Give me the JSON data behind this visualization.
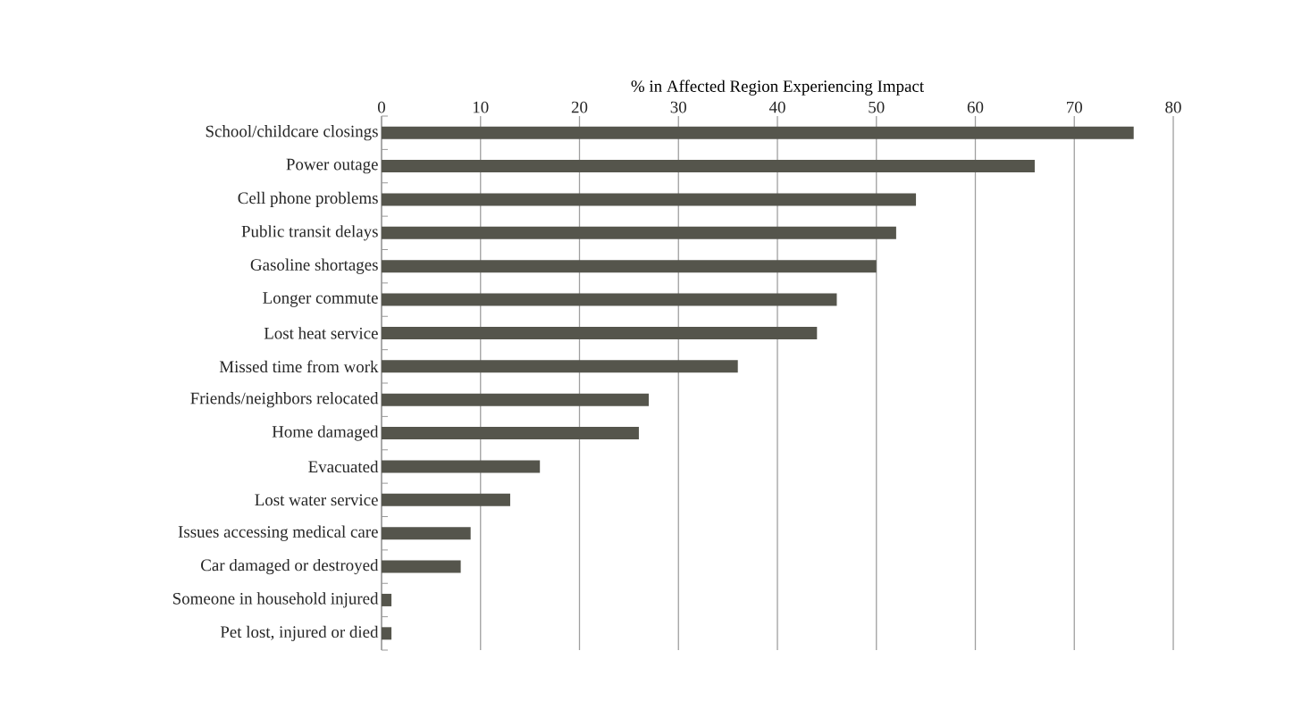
{
  "chart_data": {
    "type": "bar",
    "orientation": "horizontal",
    "xlabel": "% in Affected Region Experiencing Impact",
    "categories": [
      "School/childcare closings",
      "Power outage",
      "Cell phone problems",
      "Public transit delays",
      "Gasoline shortages",
      "Longer commute",
      "Lost heat service",
      "Missed time from work",
      "Friends/neighbors relocated",
      "Home damaged",
      "Evacuated",
      "Lost water service",
      "Issues accessing medical care",
      "Car damaged or destroyed",
      "Someone in household injured",
      "Pet lost, injured or died"
    ],
    "values": [
      76,
      66,
      54,
      52,
      50,
      46,
      44,
      36,
      27,
      26,
      16,
      13,
      9,
      8,
      1,
      1
    ],
    "color": "#55554c",
    "xlim": [
      0,
      80
    ],
    "xticks": [
      0,
      10,
      20,
      30,
      40,
      50,
      60,
      70,
      80
    ],
    "grid": "x"
  }
}
